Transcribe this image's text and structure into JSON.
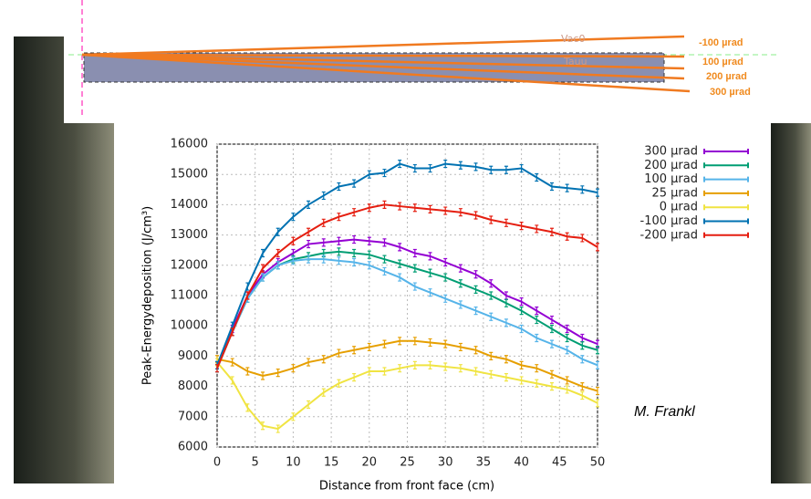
{
  "chart_data": {
    "type": "line",
    "xlabel": "Distance from front face (cm)",
    "ylabel": "Peak-Energydeposition (J/cm³)",
    "x": [
      0,
      2,
      4,
      6,
      8,
      10,
      12,
      14,
      16,
      18,
      20,
      22,
      24,
      26,
      28,
      30,
      32,
      34,
      36,
      38,
      40,
      42,
      44,
      46,
      48,
      50
    ],
    "xlim": [
      0,
      50
    ],
    "xticks": [
      0,
      5,
      10,
      15,
      20,
      25,
      30,
      35,
      40,
      45,
      50
    ],
    "ylim": [
      6000,
      16000
    ],
    "yticks": [
      6000,
      7000,
      8000,
      9000,
      10000,
      11000,
      12000,
      13000,
      14000,
      15000,
      16000
    ],
    "grid": true,
    "series": [
      {
        "name": "300 µrad",
        "color": "#9400d3",
        "values": [
          8700,
          9900,
          11000,
          11700,
          12100,
          12400,
          12700,
          12750,
          12800,
          12850,
          12800,
          12750,
          12600,
          12400,
          12300,
          12100,
          11900,
          11700,
          11400,
          11000,
          10800,
          10500,
          10200,
          9900,
          9600,
          9400
        ]
      },
      {
        "name": "200 µrad",
        "color": "#009e73",
        "values": [
          8600,
          9800,
          10900,
          11600,
          12000,
          12200,
          12300,
          12400,
          12450,
          12400,
          12350,
          12200,
          12050,
          11900,
          11750,
          11600,
          11400,
          11200,
          11000,
          10750,
          10500,
          10200,
          9900,
          9600,
          9350,
          9200
        ]
      },
      {
        "name": "100 µrad",
        "color": "#56b4e9",
        "values": [
          8600,
          9800,
          10900,
          11600,
          12000,
          12150,
          12200,
          12200,
          12150,
          12100,
          12000,
          11800,
          11600,
          11300,
          11100,
          10900,
          10700,
          10500,
          10300,
          10100,
          9900,
          9600,
          9400,
          9200,
          8900,
          8700
        ]
      },
      {
        "name": "25 µrad",
        "color": "#e69f00",
        "values": [
          8900,
          8800,
          8500,
          8350,
          8450,
          8600,
          8800,
          8900,
          9100,
          9200,
          9300,
          9400,
          9500,
          9500,
          9450,
          9400,
          9300,
          9200,
          9000,
          8900,
          8700,
          8600,
          8400,
          8200,
          8000,
          7850
        ]
      },
      {
        "name": "0 µrad",
        "color": "#f0e442",
        "values": [
          8800,
          8200,
          7300,
          6700,
          6600,
          7000,
          7400,
          7800,
          8100,
          8300,
          8500,
          8500,
          8600,
          8700,
          8700,
          8650,
          8600,
          8500,
          8400,
          8300,
          8200,
          8100,
          8000,
          7900,
          7700,
          7450
        ]
      },
      {
        "name": "-100 µrad",
        "color": "#0072b2",
        "values": [
          8700,
          10000,
          11300,
          12400,
          13100,
          13600,
          14000,
          14300,
          14600,
          14700,
          15000,
          15050,
          15350,
          15200,
          15200,
          15350,
          15300,
          15250,
          15150,
          15150,
          15200,
          14900,
          14600,
          14550,
          14500,
          14400
        ]
      },
      {
        "name": "-200 µrad",
        "color": "#e51e10",
        "values": [
          8600,
          9800,
          11000,
          11900,
          12400,
          12800,
          13100,
          13400,
          13600,
          13750,
          13900,
          14000,
          13950,
          13900,
          13850,
          13800,
          13750,
          13650,
          13500,
          13400,
          13300,
          13200,
          13100,
          12950,
          12900,
          12600
        ]
      }
    ]
  },
  "diagram": {
    "vacuum_label": "Vac0",
    "target_label": "Tauu",
    "beam_labels": [
      "-100 µrad",
      "100 µrad",
      "200 µrad",
      "300 µrad"
    ]
  },
  "credit": "M. Frankl"
}
